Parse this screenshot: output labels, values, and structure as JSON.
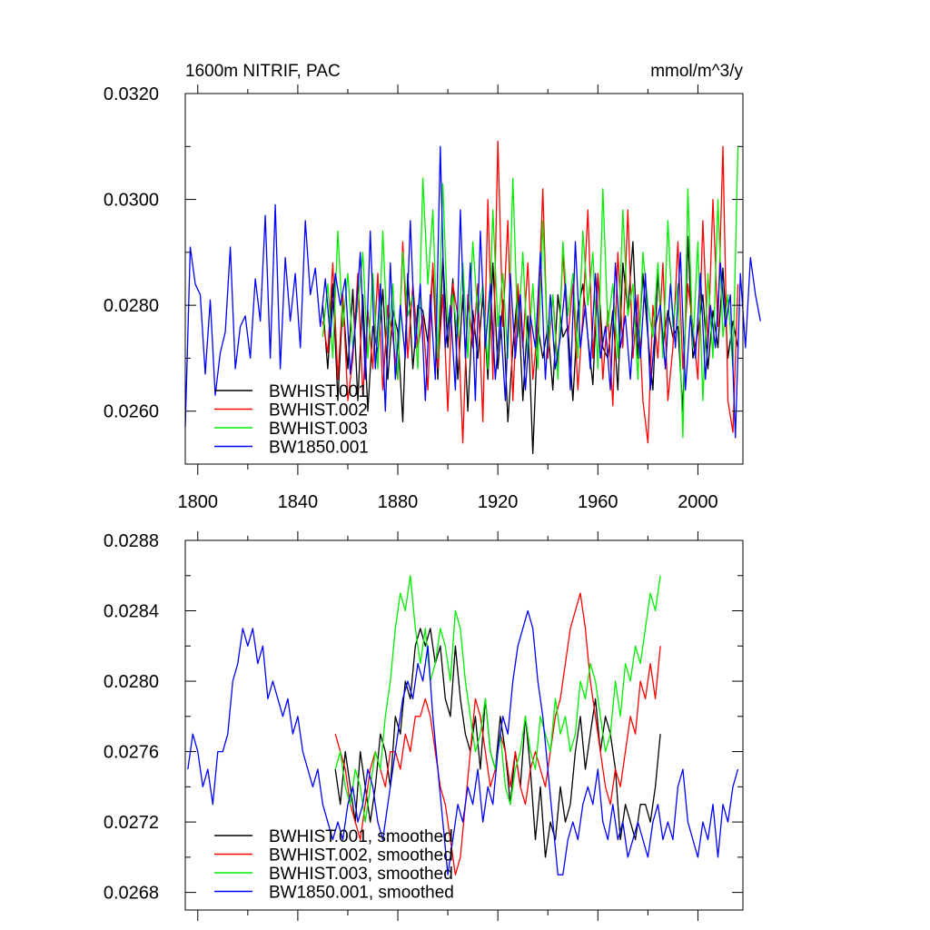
{
  "chart_data": [
    {
      "type": "line",
      "title_left": "1600m NITRIF, PAC",
      "title_right": "mmol/m^3/y",
      "xlim": [
        1795,
        2018
      ],
      "ylim": [
        0.025,
        0.032
      ],
      "yticks": [
        "0.0260",
        "0.0280",
        "0.0300",
        "0.0320"
      ],
      "ytick_values": [
        0.026,
        0.028,
        0.03,
        0.032
      ],
      "xticks": [
        "1800",
        "1840",
        "1880",
        "1920",
        "1960",
        "2000"
      ],
      "xtick_values": [
        1800,
        1840,
        1880,
        1920,
        1960,
        2000
      ],
      "legend_position": "bottom-left",
      "series": [
        {
          "name": "BWHIST.001",
          "color": "#000000",
          "x_start": 1850,
          "x_step": 2,
          "values": [
            0.028,
            0.0268,
            0.0284,
            0.0262,
            0.0281,
            0.0268,
            0.0283,
            0.0262,
            0.0282,
            0.026,
            0.0276,
            0.0271,
            0.0283,
            0.0266,
            0.0279,
            0.0275,
            0.0258,
            0.0286,
            0.0268,
            0.028,
            0.0279,
            0.0273,
            0.0287,
            0.0266,
            0.0289,
            0.0272,
            0.0285,
            0.0266,
            0.0282,
            0.026,
            0.0279,
            0.027,
            0.0282,
            0.0266,
            0.0288,
            0.0268,
            0.0281,
            0.0258,
            0.0272,
            0.0283,
            0.0262,
            0.0278,
            0.0252,
            0.0276,
            0.027,
            0.0276,
            0.0264,
            0.0282,
            0.0274,
            0.0276,
            0.0262,
            0.0279,
            0.0284,
            0.0274,
            0.0265,
            0.0286,
            0.0272,
            0.027,
            0.0279,
            0.0264,
            0.0288,
            0.0279,
            0.0292,
            0.027,
            0.0286,
            0.0274,
            0.0264,
            0.0286,
            0.0272,
            0.0279,
            0.0274,
            0.0276,
            0.026,
            0.0293,
            0.027,
            0.0275,
            0.0282,
            0.0268,
            0.0279,
            0.0272,
            0.0287,
            0.027,
            0.0277,
            0.0272
          ]
        },
        {
          "name": "BWHIST.002",
          "color": "#ff0000",
          "x_start": 1850,
          "x_step": 2,
          "values": [
            0.0277,
            0.0271,
            0.0288,
            0.0266,
            0.0282,
            0.0262,
            0.027,
            0.0286,
            0.0263,
            0.0279,
            0.0268,
            0.0286,
            0.0264,
            0.028,
            0.0274,
            0.0266,
            0.0292,
            0.027,
            0.0284,
            0.0272,
            0.0278,
            0.0264,
            0.0288,
            0.0268,
            0.0282,
            0.026,
            0.0284,
            0.0278,
            0.0254,
            0.0282,
            0.0272,
            0.0284,
            0.0258,
            0.03,
            0.0266,
            0.0311,
            0.0276,
            0.0296,
            0.0262,
            0.0284,
            0.0272,
            0.0288,
            0.0266,
            0.0276,
            0.0302,
            0.027,
            0.0282,
            0.0268,
            0.029,
            0.0274,
            0.0284,
            0.0264,
            0.0278,
            0.0298,
            0.027,
            0.0286,
            0.0266,
            0.0279,
            0.0261,
            0.029,
            0.0272,
            0.0298,
            0.027,
            0.0282,
            0.0262,
            0.0254,
            0.028,
            0.027,
            0.0288,
            0.0262,
            0.0272,
            0.0292,
            0.0268,
            0.0284,
            0.0276,
            0.0266,
            0.0296,
            0.0272,
            0.03,
            0.0276,
            0.031,
            0.0262,
            0.0256,
            0.0284
          ]
        },
        {
          "name": "BWHIST.003",
          "color": "#00ee00",
          "x_start": 1850,
          "x_step": 2,
          "values": [
            0.0274,
            0.0284,
            0.027,
            0.0294,
            0.0276,
            0.0286,
            0.0272,
            0.028,
            0.029,
            0.027,
            0.0286,
            0.0268,
            0.0294,
            0.0272,
            0.0284,
            0.0266,
            0.029,
            0.0278,
            0.0282,
            0.0268,
            0.0304,
            0.0284,
            0.0298,
            0.027,
            0.0303,
            0.0276,
            0.0282,
            0.0274,
            0.0288,
            0.027,
            0.0292,
            0.0278,
            0.0284,
            0.0268,
            0.0298,
            0.0276,
            0.0286,
            0.027,
            0.0304,
            0.0274,
            0.029,
            0.027,
            0.0284,
            0.0268,
            0.0296,
            0.0272,
            0.0282,
            0.0266,
            0.0292,
            0.0278,
            0.0286,
            0.027,
            0.0294,
            0.028,
            0.029,
            0.0268,
            0.0302,
            0.0276,
            0.0284,
            0.027,
            0.0298,
            0.0278,
            0.0284,
            0.0266,
            0.029,
            0.028,
            0.0274,
            0.0288,
            0.027,
            0.0296,
            0.0276,
            0.0284,
            0.0255,
            0.0302,
            0.0272,
            0.0292,
            0.0262,
            0.0286,
            0.027,
            0.03,
            0.0274,
            0.0282,
            0.0268,
            0.031
          ]
        },
        {
          "name": "BW1850.001",
          "color": "#0000ff",
          "x_start": 1795,
          "x_step": 2,
          "values": [
            0.0257,
            0.0291,
            0.0284,
            0.0282,
            0.0267,
            0.0281,
            0.0263,
            0.0271,
            0.0275,
            0.0291,
            0.0268,
            0.0276,
            0.0278,
            0.027,
            0.0285,
            0.0277,
            0.0297,
            0.027,
            0.0299,
            0.0268,
            0.0289,
            0.0277,
            0.0286,
            0.0272,
            0.0296,
            0.0282,
            0.0287,
            0.0276,
            0.0285,
            0.0274,
            0.0286,
            0.028,
            0.0285,
            0.0267,
            0.0276,
            0.029,
            0.0266,
            0.0294,
            0.0268,
            0.0284,
            0.026,
            0.0288,
            0.0266,
            0.028,
            0.027,
            0.0296,
            0.0272,
            0.0284,
            0.0262,
            0.0282,
            0.0266,
            0.031,
            0.0272,
            0.028,
            0.0264,
            0.0298,
            0.027,
            0.0288,
            0.0262,
            0.0294,
            0.0272,
            0.0284,
            0.0266,
            0.0278,
            0.0262,
            0.0286,
            0.027,
            0.0282,
            0.0264,
            0.0278,
            0.0272,
            0.029,
            0.0266,
            0.0282,
            0.0268,
            0.0274,
            0.0284,
            0.0264,
            0.0292,
            0.0272,
            0.028,
            0.0268,
            0.0286,
            0.027,
            0.0276,
            0.0264,
            0.0288,
            0.0272,
            0.0278,
            0.0266,
            0.0282,
            0.027,
            0.0286,
            0.0264,
            0.0276,
            0.028,
            0.0268,
            0.0284,
            0.0272,
            0.029,
            0.0264,
            0.0278,
            0.027,
            0.0286,
            0.0266,
            0.028,
            0.0272,
            0.0288,
            0.0276,
            0.0282,
            0.0255,
            0.0286,
            0.0272,
            0.0289,
            0.0282,
            0.0277
          ]
        }
      ]
    },
    {
      "type": "line",
      "xlim": [
        1795,
        2018
      ],
      "ylim": [
        0.0267,
        0.0288
      ],
      "yticks": [
        "0.0268",
        "0.0272",
        "0.0276",
        "0.0280",
        "0.0284",
        "0.0288"
      ],
      "ytick_values": [
        0.0268,
        0.0272,
        0.0276,
        0.028,
        0.0284,
        0.0288
      ],
      "xtick_values": [
        1800,
        1840,
        1880,
        1920,
        1960,
        2000
      ],
      "legend_position": "bottom-left",
      "series": [
        {
          "name": "BWHIST.001, smoothed",
          "color": "#000000",
          "x_start": 1855,
          "x_step": 2,
          "values": [
            0.0275,
            0.0273,
            0.0276,
            0.0274,
            0.0272,
            0.0276,
            0.0274,
            0.0272,
            0.0274,
            0.0277,
            0.0276,
            0.0274,
            0.0278,
            0.0277,
            0.028,
            0.0279,
            0.0282,
            0.0283,
            0.0282,
            0.0283,
            0.0281,
            0.0282,
            0.0279,
            0.0278,
            0.0282,
            0.0279,
            0.0277,
            0.0276,
            0.0278,
            0.0275,
            0.0279,
            0.0276,
            0.0275,
            0.0278,
            0.0276,
            0.0273,
            0.0276,
            0.0274,
            0.0278,
            0.0275,
            0.0271,
            0.0274,
            0.027,
            0.0272,
            0.0271,
            0.0274,
            0.0272,
            0.0273,
            0.0276,
            0.0278,
            0.0275,
            0.0277,
            0.0279,
            0.0276,
            0.0278,
            0.0277,
            0.0275,
            0.0271,
            0.0273,
            0.0272,
            0.0271,
            0.0273,
            0.0273,
            0.0272,
            0.0274,
            0.0277
          ]
        },
        {
          "name": "BWHIST.002, smoothed",
          "color": "#ff0000",
          "x_start": 1855,
          "x_step": 2,
          "values": [
            0.0277,
            0.0276,
            0.0275,
            0.0273,
            0.0272,
            0.0271,
            0.0273,
            0.0275,
            0.0276,
            0.0275,
            0.0274,
            0.0276,
            0.0276,
            0.0275,
            0.0277,
            0.0276,
            0.0278,
            0.0278,
            0.0279,
            0.0278,
            0.0276,
            0.0274,
            0.0273,
            0.0271,
            0.0269,
            0.027,
            0.0273,
            0.0276,
            0.0279,
            0.0278,
            0.0276,
            0.0274,
            0.0275,
            0.0277,
            0.0276,
            0.0274,
            0.0276,
            0.0274,
            0.0273,
            0.0275,
            0.0276,
            0.0275,
            0.0274,
            0.0276,
            0.0278,
            0.0279,
            0.0281,
            0.0283,
            0.0284,
            0.0285,
            0.0283,
            0.028,
            0.0278,
            0.0276,
            0.0274,
            0.0273,
            0.0275,
            0.0274,
            0.0276,
            0.0278,
            0.0277,
            0.028,
            0.0279,
            0.0281,
            0.0279,
            0.0282
          ]
        },
        {
          "name": "BWHIST.003, smoothed",
          "color": "#00ee00",
          "x_start": 1855,
          "x_step": 2,
          "values": [
            0.0275,
            0.0276,
            0.0274,
            0.0273,
            0.0275,
            0.0274,
            0.0272,
            0.0274,
            0.0276,
            0.0275,
            0.0278,
            0.028,
            0.0283,
            0.0285,
            0.0284,
            0.0286,
            0.0283,
            0.0281,
            0.0283,
            0.028,
            0.0281,
            0.0283,
            0.0282,
            0.028,
            0.0284,
            0.0283,
            0.028,
            0.0278,
            0.0276,
            0.0277,
            0.0279,
            0.0276,
            0.0275,
            0.0277,
            0.0274,
            0.0273,
            0.0275,
            0.0276,
            0.0278,
            0.0276,
            0.0275,
            0.0278,
            0.0277,
            0.0276,
            0.0279,
            0.0277,
            0.0278,
            0.0276,
            0.0277,
            0.028,
            0.0279,
            0.0281,
            0.028,
            0.0278,
            0.0276,
            0.0277,
            0.028,
            0.0278,
            0.0281,
            0.028,
            0.0282,
            0.0281,
            0.0283,
            0.0285,
            0.0284,
            0.0286
          ]
        },
        {
          "name": "BW1850.001, smoothed",
          "color": "#0000ff",
          "x_start": 1796,
          "x_step": 2,
          "values": [
            0.0275,
            0.0277,
            0.0276,
            0.0274,
            0.0275,
            0.0273,
            0.0276,
            0.0276,
            0.0277,
            0.028,
            0.0281,
            0.0283,
            0.0282,
            0.0283,
            0.0281,
            0.0282,
            0.0279,
            0.028,
            0.0279,
            0.0278,
            0.0279,
            0.0277,
            0.0278,
            0.0276,
            0.0275,
            0.0274,
            0.0275,
            0.0273,
            0.0272,
            0.0271,
            0.0272,
            0.0271,
            0.0273,
            0.0274,
            0.0272,
            0.0273,
            0.0275,
            0.0274,
            0.0272,
            0.0271,
            0.0273,
            0.0275,
            0.0277,
            0.0279,
            0.028,
            0.0279,
            0.0281,
            0.028,
            0.0282,
            0.0278,
            0.0275,
            0.0272,
            0.0269,
            0.0271,
            0.0273,
            0.0272,
            0.0274,
            0.0273,
            0.0275,
            0.0272,
            0.0274,
            0.0273,
            0.0276,
            0.0278,
            0.0277,
            0.028,
            0.0282,
            0.0283,
            0.0284,
            0.0283,
            0.028,
            0.0278,
            0.0275,
            0.0272,
            0.0269,
            0.0269,
            0.0271,
            0.0272,
            0.0271,
            0.0273,
            0.0274,
            0.0273,
            0.0275,
            0.0272,
            0.0271,
            0.0273,
            0.0271,
            0.0272,
            0.027,
            0.0271,
            0.0272,
            0.0271,
            0.027,
            0.0272,
            0.0273,
            0.0271,
            0.0272,
            0.0271,
            0.0274,
            0.0275,
            0.0272,
            0.0271,
            0.027,
            0.0272,
            0.0271,
            0.0273,
            0.027,
            0.0273,
            0.0272,
            0.0274,
            0.0275
          ]
        }
      ]
    }
  ]
}
